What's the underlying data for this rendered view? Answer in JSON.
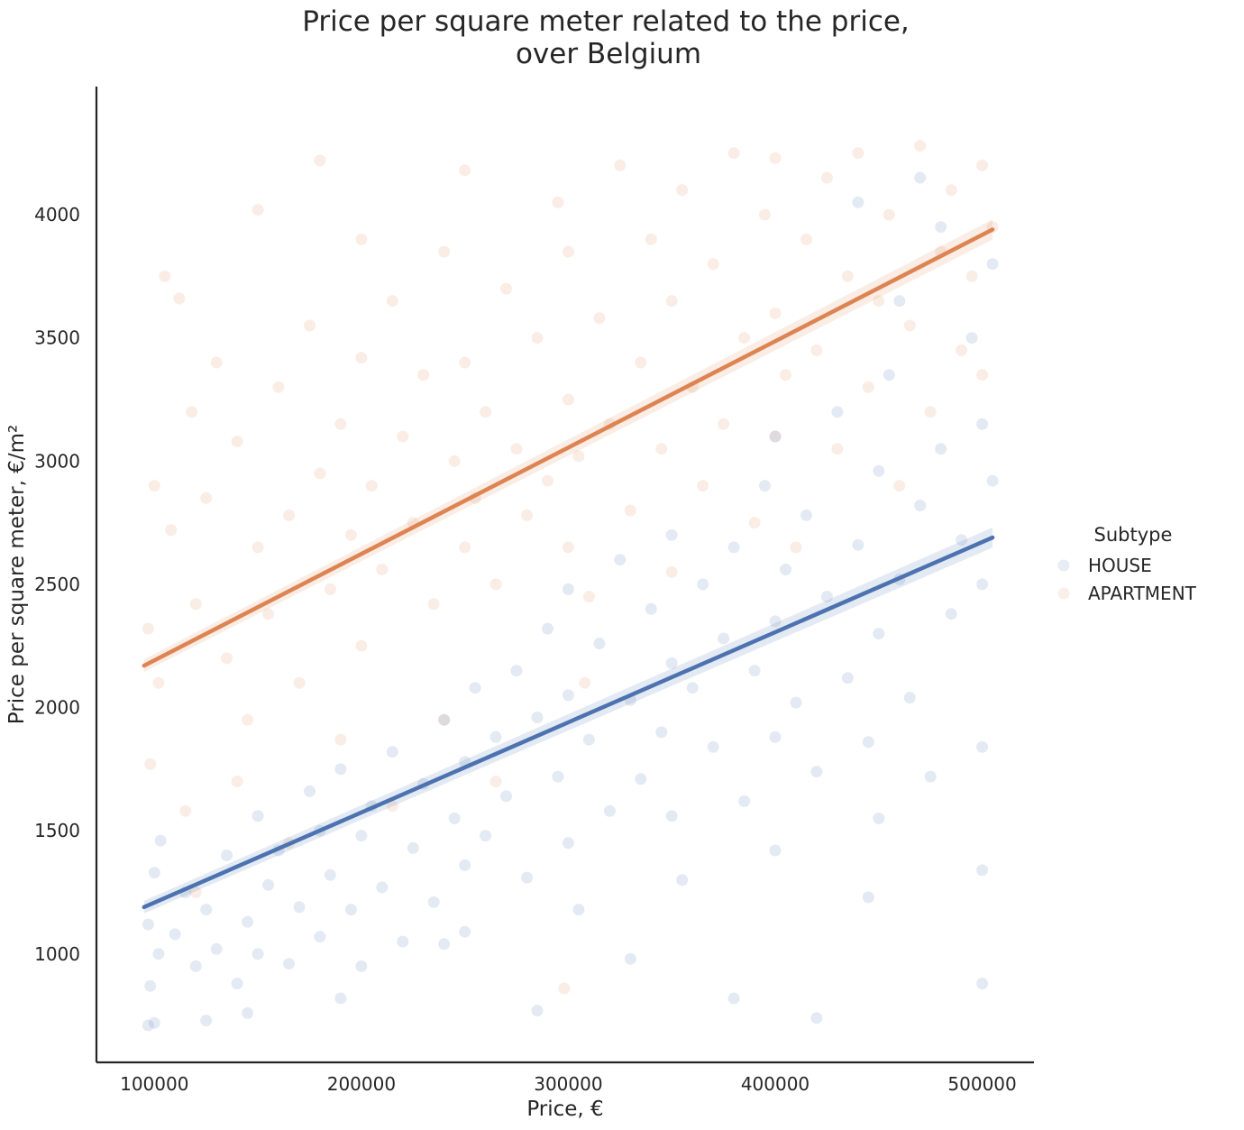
{
  "chart_data": {
    "type": "scatter",
    "title": [
      "Price per square meter related to the price,",
      "over Belgium"
    ],
    "xlabel": "Price, €",
    "ylabel": "Price per square meter, €/m²",
    "xlim": [
      72000,
      525000
    ],
    "ylim": [
      560,
      4520
    ],
    "xticks": [
      100000,
      200000,
      300000,
      400000,
      500000
    ],
    "yticks": [
      1000,
      1500,
      2000,
      2500,
      3000,
      3500,
      4000
    ],
    "xtick_labels": [
      "100000",
      "200000",
      "300000",
      "400000",
      "500000"
    ],
    "ytick_labels": [
      "1000",
      "1500",
      "2000",
      "2500",
      "3000",
      "3500",
      "4000"
    ],
    "grid": false,
    "legend": {
      "title": "Subtype",
      "placement": "right",
      "entries": [
        "HOUSE",
        "APARTMENT"
      ]
    },
    "series": [
      {
        "name": "HOUSE",
        "color": "#4c72b0",
        "regression": {
          "x": [
            95000,
            505000
          ],
          "y": [
            1190,
            2690
          ]
        },
        "points": [
          [
            97000,
            710
          ],
          [
            100000,
            720
          ],
          [
            98000,
            870
          ],
          [
            102000,
            1000
          ],
          [
            97000,
            1120
          ],
          [
            100000,
            1330
          ],
          [
            103000,
            1460
          ],
          [
            110000,
            1080
          ],
          [
            115000,
            1250
          ],
          [
            120000,
            950
          ],
          [
            125000,
            1180
          ],
          [
            130000,
            1020
          ],
          [
            135000,
            1400
          ],
          [
            140000,
            880
          ],
          [
            145000,
            1130
          ],
          [
            150000,
            1560
          ],
          [
            150000,
            1000
          ],
          [
            155000,
            1280
          ],
          [
            160000,
            1420
          ],
          [
            165000,
            960
          ],
          [
            170000,
            1190
          ],
          [
            175000,
            1660
          ],
          [
            180000,
            1500
          ],
          [
            180000,
            1070
          ],
          [
            185000,
            1320
          ],
          [
            190000,
            1750
          ],
          [
            195000,
            1180
          ],
          [
            200000,
            1480
          ],
          [
            200000,
            950
          ],
          [
            205000,
            1600
          ],
          [
            210000,
            1270
          ],
          [
            215000,
            1820
          ],
          [
            220000,
            1050
          ],
          [
            225000,
            1430
          ],
          [
            230000,
            1690
          ],
          [
            235000,
            1210
          ],
          [
            240000,
            1950
          ],
          [
            245000,
            1550
          ],
          [
            250000,
            1360
          ],
          [
            250000,
            1780
          ],
          [
            250000,
            1090
          ],
          [
            255000,
            2080
          ],
          [
            260000,
            1480
          ],
          [
            265000,
            1880
          ],
          [
            270000,
            1640
          ],
          [
            275000,
            2150
          ],
          [
            280000,
            1310
          ],
          [
            285000,
            1960
          ],
          [
            290000,
            2320
          ],
          [
            295000,
            1720
          ],
          [
            300000,
            2050
          ],
          [
            300000,
            1450
          ],
          [
            300000,
            2480
          ],
          [
            305000,
            1180
          ],
          [
            310000,
            1870
          ],
          [
            315000,
            2260
          ],
          [
            320000,
            1580
          ],
          [
            325000,
            2600
          ],
          [
            330000,
            2030
          ],
          [
            335000,
            1710
          ],
          [
            340000,
            2400
          ],
          [
            345000,
            1900
          ],
          [
            350000,
            2180
          ],
          [
            350000,
            1560
          ],
          [
            350000,
            2700
          ],
          [
            355000,
            1300
          ],
          [
            360000,
            2080
          ],
          [
            365000,
            2500
          ],
          [
            370000,
            1840
          ],
          [
            375000,
            2280
          ],
          [
            380000,
            2650
          ],
          [
            385000,
            1620
          ],
          [
            390000,
            2150
          ],
          [
            395000,
            2900
          ],
          [
            400000,
            2350
          ],
          [
            400000,
            1880
          ],
          [
            400000,
            3100
          ],
          [
            400000,
            1420
          ],
          [
            405000,
            2560
          ],
          [
            410000,
            2020
          ],
          [
            415000,
            2780
          ],
          [
            420000,
            1740
          ],
          [
            425000,
            2450
          ],
          [
            430000,
            3200
          ],
          [
            435000,
            2120
          ],
          [
            440000,
            2660
          ],
          [
            445000,
            1860
          ],
          [
            450000,
            2960
          ],
          [
            450000,
            2300
          ],
          [
            450000,
            1550
          ],
          [
            455000,
            3350
          ],
          [
            460000,
            2520
          ],
          [
            465000,
            2040
          ],
          [
            470000,
            2820
          ],
          [
            475000,
            1720
          ],
          [
            480000,
            3050
          ],
          [
            485000,
            2380
          ],
          [
            490000,
            2680
          ],
          [
            495000,
            3500
          ],
          [
            500000,
            2500
          ],
          [
            500000,
            1840
          ],
          [
            500000,
            3150
          ],
          [
            500000,
            1340
          ],
          [
            500000,
            880
          ],
          [
            505000,
            2920
          ],
          [
            445000,
            1230
          ],
          [
            420000,
            740
          ],
          [
            380000,
            820
          ],
          [
            330000,
            980
          ],
          [
            285000,
            770
          ],
          [
            240000,
            1040
          ],
          [
            190000,
            820
          ],
          [
            145000,
            760
          ],
          [
            125000,
            730
          ],
          [
            480000,
            3950
          ],
          [
            470000,
            4150
          ],
          [
            505000,
            3800
          ],
          [
            460000,
            3650
          ],
          [
            440000,
            4050
          ]
        ]
      },
      {
        "name": "APARTMENT",
        "color": "#dd8452",
        "regression": {
          "x": [
            95000,
            505000
          ],
          "y": [
            2170,
            3940
          ]
        },
        "points": [
          [
            97000,
            2320
          ],
          [
            100000,
            2900
          ],
          [
            98000,
            1770
          ],
          [
            102000,
            2100
          ],
          [
            105000,
            3750
          ],
          [
            108000,
            2720
          ],
          [
            112000,
            3660
          ],
          [
            115000,
            1580
          ],
          [
            118000,
            3200
          ],
          [
            120000,
            2420
          ],
          [
            125000,
            2850
          ],
          [
            130000,
            3400
          ],
          [
            135000,
            2200
          ],
          [
            140000,
            3080
          ],
          [
            145000,
            1950
          ],
          [
            150000,
            2650
          ],
          [
            150000,
            4020
          ],
          [
            155000,
            2380
          ],
          [
            160000,
            3300
          ],
          [
            165000,
            2780
          ],
          [
            170000,
            2100
          ],
          [
            175000,
            3550
          ],
          [
            180000,
            2950
          ],
          [
            180000,
            4220
          ],
          [
            185000,
            2480
          ],
          [
            190000,
            3150
          ],
          [
            195000,
            2700
          ],
          [
            200000,
            3420
          ],
          [
            200000,
            2250
          ],
          [
            200000,
            3900
          ],
          [
            205000,
            2900
          ],
          [
            210000,
            2560
          ],
          [
            215000,
            3650
          ],
          [
            220000,
            3100
          ],
          [
            225000,
            2750
          ],
          [
            230000,
            3350
          ],
          [
            235000,
            2420
          ],
          [
            240000,
            3850
          ],
          [
            245000,
            3000
          ],
          [
            250000,
            2650
          ],
          [
            250000,
            3400
          ],
          [
            250000,
            4180
          ],
          [
            255000,
            2850
          ],
          [
            260000,
            3200
          ],
          [
            265000,
            2500
          ],
          [
            270000,
            3700
          ],
          [
            275000,
            3050
          ],
          [
            280000,
            2780
          ],
          [
            285000,
            3500
          ],
          [
            290000,
            2920
          ],
          [
            295000,
            4050
          ],
          [
            300000,
            3250
          ],
          [
            300000,
            2650
          ],
          [
            300000,
            3850
          ],
          [
            305000,
            3020
          ],
          [
            310000,
            2450
          ],
          [
            315000,
            3580
          ],
          [
            320000,
            3150
          ],
          [
            325000,
            4200
          ],
          [
            330000,
            2800
          ],
          [
            335000,
            3400
          ],
          [
            340000,
            3900
          ],
          [
            345000,
            3050
          ],
          [
            350000,
            3650
          ],
          [
            350000,
            2550
          ],
          [
            355000,
            4100
          ],
          [
            360000,
            3300
          ],
          [
            365000,
            2900
          ],
          [
            370000,
            3800
          ],
          [
            375000,
            3150
          ],
          [
            380000,
            4250
          ],
          [
            385000,
            3500
          ],
          [
            390000,
            2750
          ],
          [
            395000,
            4000
          ],
          [
            400000,
            3600
          ],
          [
            400000,
            3100
          ],
          [
            400000,
            4230
          ],
          [
            405000,
            3350
          ],
          [
            410000,
            2650
          ],
          [
            415000,
            3900
          ],
          [
            420000,
            3450
          ],
          [
            425000,
            4150
          ],
          [
            430000,
            3050
          ],
          [
            435000,
            3750
          ],
          [
            440000,
            4250
          ],
          [
            445000,
            3300
          ],
          [
            450000,
            3650
          ],
          [
            455000,
            4000
          ],
          [
            460000,
            2900
          ],
          [
            465000,
            3550
          ],
          [
            470000,
            4280
          ],
          [
            475000,
            3200
          ],
          [
            480000,
            3850
          ],
          [
            485000,
            4100
          ],
          [
            490000,
            3450
          ],
          [
            495000,
            3750
          ],
          [
            500000,
            4200
          ],
          [
            500000,
            3350
          ],
          [
            505000,
            3950
          ],
          [
            265000,
            1700
          ],
          [
            240000,
            1950
          ],
          [
            215000,
            1600
          ],
          [
            190000,
            1870
          ],
          [
            165000,
            1450
          ],
          [
            140000,
            1700
          ],
          [
            120000,
            1250
          ],
          [
            298000,
            860
          ],
          [
            308000,
            2100
          ]
        ]
      }
    ]
  }
}
